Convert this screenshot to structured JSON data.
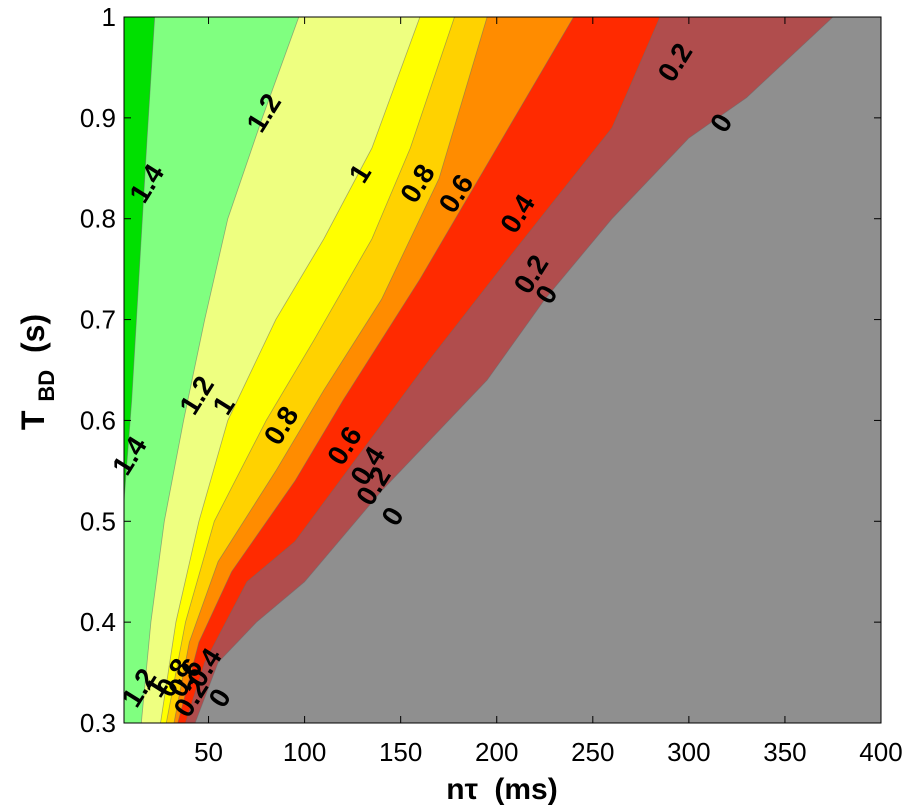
{
  "chart_data": {
    "type": "contour",
    "title": "",
    "xlabel": "nτ (ms)",
    "xlabel_main": "nτ",
    "xlabel_unit": "(ms)",
    "ylabel": "TBD (s)",
    "ylabel_main": "T",
    "ylabel_sub": "BD",
    "ylabel_unit": "(s)",
    "xlim": [
      6,
      400
    ],
    "ylim": [
      0.3,
      1
    ],
    "xticks": [
      50,
      100,
      150,
      200,
      250,
      300,
      350,
      400
    ],
    "xtick_labels": [
      "50",
      "100",
      "150",
      "200",
      "250",
      "300",
      "350",
      "400"
    ],
    "yticks": [
      0.3,
      0.4,
      0.5,
      0.6,
      0.7,
      0.8,
      0.9,
      1
    ],
    "ytick_labels": [
      "0.3",
      "0.4",
      "0.5",
      "0.6",
      "0.7",
      "0.8",
      "0.9",
      "1"
    ],
    "grid": false,
    "levels": [
      0,
      0.2,
      0.4,
      0.6,
      0.8,
      1,
      1.2,
      1.4
    ],
    "fill_colors": {
      "below_0": "#8f8f8f",
      "0_to_0.2": "#b04d4d",
      "0.2_to_0.4": "#ff2a00",
      "0.4_to_0.6": "#ff8c00",
      "0.6_to_0.8": "#ffd200",
      "0.8_to_1": "#ffff00",
      "1_to_1.2": "#eeff80",
      "1.2_to_1.4": "#80ff80",
      "above_1.4": "#00e000"
    },
    "contour_lines": [
      {
        "level": 1.4,
        "points": [
          [
            6,
            0.52
          ],
          [
            10,
            0.62
          ],
          [
            14,
            0.75
          ],
          [
            18,
            0.88
          ],
          [
            22,
            1.0
          ]
        ]
      },
      {
        "level": 1.2,
        "points": [
          [
            15,
            0.3
          ],
          [
            20,
            0.4
          ],
          [
            27,
            0.5
          ],
          [
            37,
            0.6
          ],
          [
            48,
            0.7
          ],
          [
            60,
            0.8
          ],
          [
            78,
            0.9
          ],
          [
            97,
            1.0
          ]
        ]
      },
      {
        "level": 1,
        "points": [
          [
            25,
            0.3
          ],
          [
            33,
            0.4
          ],
          [
            45,
            0.5
          ],
          [
            60,
            0.6
          ],
          [
            85,
            0.7
          ],
          [
            110,
            0.78
          ],
          [
            135,
            0.87
          ],
          [
            160,
            1.0
          ]
        ]
      },
      {
        "level": 0.8,
        "points": [
          [
            28,
            0.3
          ],
          [
            38,
            0.4
          ],
          [
            53,
            0.5
          ],
          [
            80,
            0.6
          ],
          [
            105,
            0.68
          ],
          [
            135,
            0.78
          ],
          [
            155,
            0.87
          ],
          [
            178,
            1.0
          ]
        ]
      },
      {
        "level": 0.6,
        "points": [
          [
            32,
            0.3
          ],
          [
            40,
            0.38
          ],
          [
            55,
            0.46
          ],
          [
            85,
            0.55
          ],
          [
            110,
            0.63
          ],
          [
            140,
            0.72
          ],
          [
            170,
            0.84
          ],
          [
            195,
            1.0
          ]
        ]
      },
      {
        "level": 0.4,
        "points": [
          [
            34,
            0.3
          ],
          [
            45,
            0.38
          ],
          [
            62,
            0.45
          ],
          [
            95,
            0.54
          ],
          [
            120,
            0.62
          ],
          [
            160,
            0.74
          ],
          [
            200,
            0.87
          ],
          [
            240,
            1.0
          ]
        ]
      },
      {
        "level": 0.2,
        "points": [
          [
            38,
            0.3
          ],
          [
            48,
            0.36
          ],
          [
            70,
            0.44
          ],
          [
            95,
            0.48
          ],
          [
            130,
            0.57
          ],
          [
            165,
            0.66
          ],
          [
            210,
            0.77
          ],
          [
            260,
            0.89
          ],
          [
            285,
            1.0
          ]
        ]
      },
      {
        "level": 0,
        "points": [
          [
            43,
            0.3
          ],
          [
            55,
            0.36
          ],
          [
            75,
            0.4
          ],
          [
            100,
            0.44
          ],
          [
            140,
            0.53
          ],
          [
            195,
            0.64
          ],
          [
            225,
            0.72
          ],
          [
            260,
            0.8
          ],
          [
            300,
            0.88
          ],
          [
            330,
            0.92
          ],
          [
            375,
            1.0
          ]
        ]
      }
    ],
    "annotations": [
      {
        "text": "1.4",
        "x": 22,
        "y": 0.83
      },
      {
        "text": "1.2",
        "x": 83,
        "y": 0.9
      },
      {
        "text": "1",
        "x": 133,
        "y": 0.84
      },
      {
        "text": "0.8",
        "x": 163,
        "y": 0.83
      },
      {
        "text": "0.6",
        "x": 183,
        "y": 0.82
      },
      {
        "text": "0.4",
        "x": 215,
        "y": 0.8
      },
      {
        "text": "0.2",
        "x": 297,
        "y": 0.95
      },
      {
        "text": "0",
        "x": 321,
        "y": 0.89
      },
      {
        "text": "0.2",
        "x": 222,
        "y": 0.74
      },
      {
        "text": "0",
        "x": 230,
        "y": 0.72
      },
      {
        "text": "1.4",
        "x": 13,
        "y": 0.56
      },
      {
        "text": "1.2",
        "x": 48,
        "y": 0.62
      },
      {
        "text": "1",
        "x": 62,
        "y": 0.61
      },
      {
        "text": "0.8",
        "x": 92,
        "y": 0.59
      },
      {
        "text": "0.6",
        "x": 125,
        "y": 0.57
      },
      {
        "text": "0.4",
        "x": 137,
        "y": 0.55
      },
      {
        "text": "0.2",
        "x": 140,
        "y": 0.53
      },
      {
        "text": "0",
        "x": 150,
        "y": 0.5
      },
      {
        "text": "1.2",
        "x": 18,
        "y": 0.33
      },
      {
        "text": "1",
        "x": 27,
        "y": 0.33
      },
      {
        "text": "0.8",
        "x": 36,
        "y": 0.34
      },
      {
        "text": "0.6",
        "x": 42,
        "y": 0.34
      },
      {
        "text": "0.4",
        "x": 52,
        "y": 0.35
      },
      {
        "text": "0.2",
        "x": 45,
        "y": 0.32
      },
      {
        "text": "0",
        "x": 60,
        "y": 0.32
      }
    ]
  }
}
